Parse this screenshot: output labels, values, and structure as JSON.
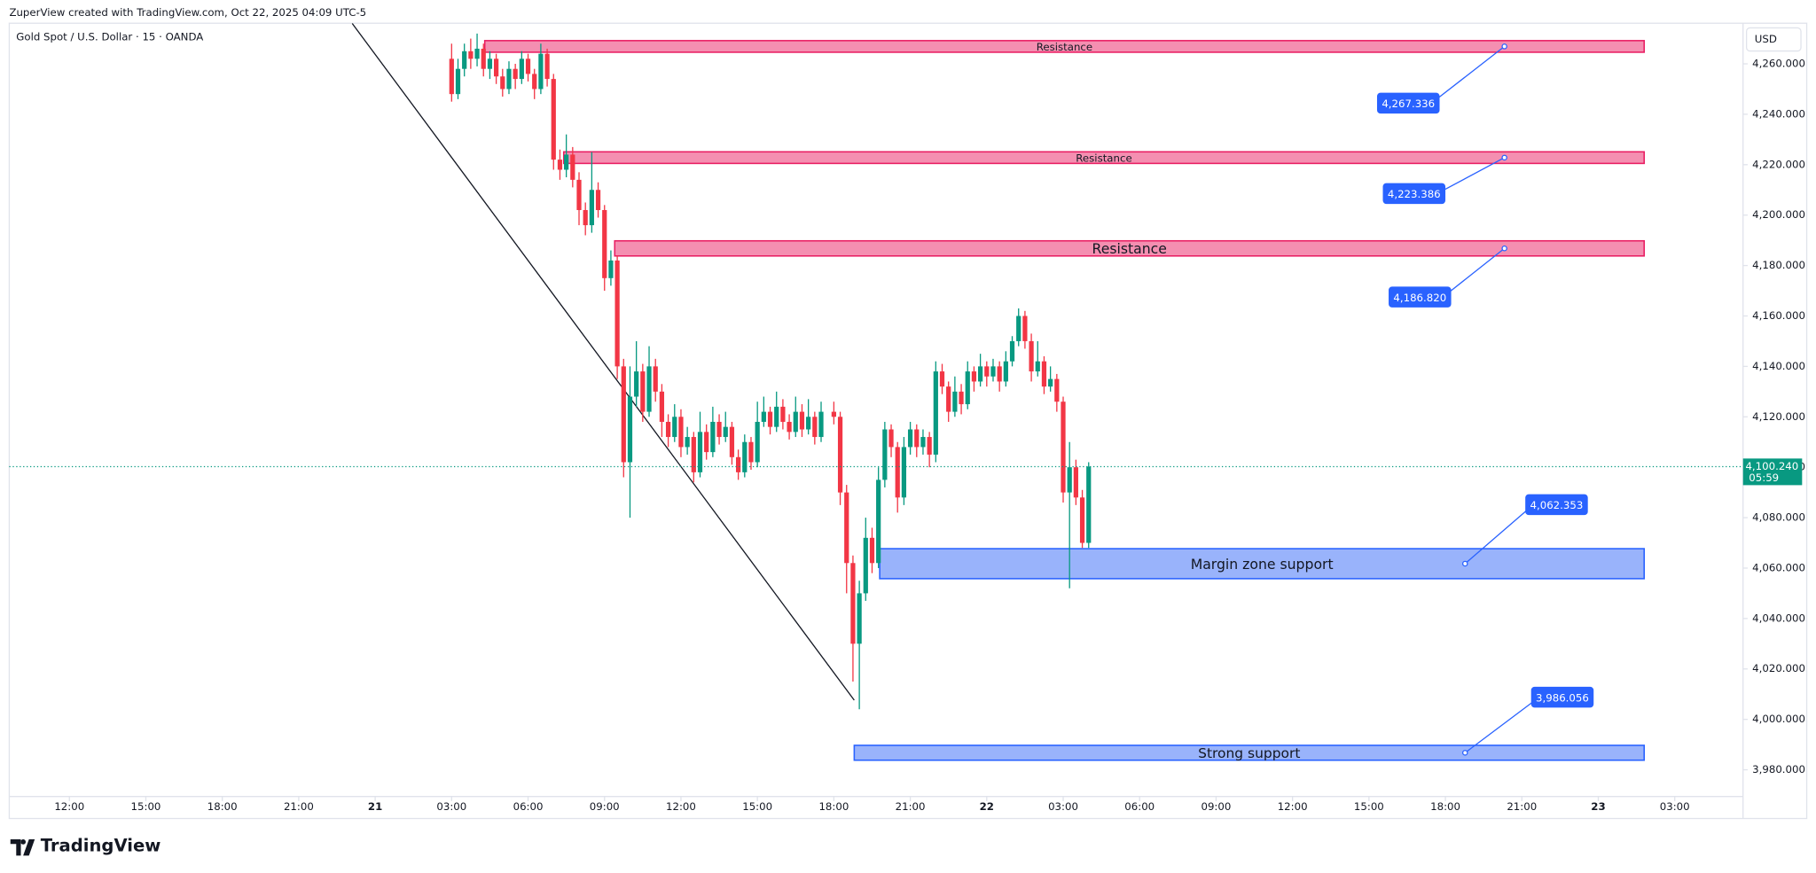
{
  "header": {
    "attribution": "ZuperView created with TradingView.com, Oct 22, 2025 04:09 UTC-5",
    "brand": "TradingView"
  },
  "chart_data": {
    "type": "candlestick",
    "title": "Gold Spot / U.S. Dollar · 15 · OANDA",
    "currency": "USD",
    "up_color": "#089981",
    "down_color": "#f23645",
    "xlim": [
      -14.36,
      53.68
    ],
    "ylim": [
      3969.4,
      4276.1
    ],
    "xticks": [
      {
        "value": -12,
        "label": "12:00"
      },
      {
        "value": -9,
        "label": "15:00"
      },
      {
        "value": -6,
        "label": "18:00"
      },
      {
        "value": -3,
        "label": "21:00"
      },
      {
        "value": 0,
        "label": "21"
      },
      {
        "value": 3,
        "label": "03:00"
      },
      {
        "value": 6,
        "label": "06:00"
      },
      {
        "value": 9,
        "label": "09:00"
      },
      {
        "value": 12,
        "label": "12:00"
      },
      {
        "value": 15,
        "label": "15:00"
      },
      {
        "value": 18,
        "label": "18:00"
      },
      {
        "value": 21,
        "label": "21:00"
      },
      {
        "value": 24,
        "label": "22"
      },
      {
        "value": 27,
        "label": "03:00"
      },
      {
        "value": 30,
        "label": "06:00"
      },
      {
        "value": 33,
        "label": "09:00"
      },
      {
        "value": 36,
        "label": "12:00"
      },
      {
        "value": 39,
        "label": "15:00"
      },
      {
        "value": 42,
        "label": "18:00"
      },
      {
        "value": 45,
        "label": "21:00"
      },
      {
        "value": 48,
        "label": "23"
      },
      {
        "value": 51,
        "label": "03:00"
      }
    ],
    "yticks": [
      {
        "value": 3980,
        "label": "3,980.000"
      },
      {
        "value": 4000,
        "label": "4,000.000"
      },
      {
        "value": 4020,
        "label": "4,020.000"
      },
      {
        "value": 4040,
        "label": "4,040.000"
      },
      {
        "value": 4060,
        "label": "4,060.000"
      },
      {
        "value": 4080,
        "label": "4,080.000"
      },
      {
        "value": 4100,
        "label": "4,100.000"
      },
      {
        "value": 4120,
        "label": "4,120.000"
      },
      {
        "value": 4140,
        "label": "4,140.000"
      },
      {
        "value": 4160,
        "label": "4,160.000"
      },
      {
        "value": 4180,
        "label": "4,180.000"
      },
      {
        "value": 4200,
        "label": "4,200.000"
      },
      {
        "value": 4220,
        "label": "4,220.000"
      },
      {
        "value": 4240,
        "label": "4,240.000"
      },
      {
        "value": 4260,
        "label": "4,260.000"
      }
    ],
    "candles": [
      {
        "x": 3,
        "o": 4262,
        "h": 4268,
        "l": 4245,
        "c": 4248
      },
      {
        "x": 3.25,
        "o": 4248,
        "h": 4262,
        "l": 4246,
        "c": 4258
      },
      {
        "x": 3.5,
        "o": 4258,
        "h": 4268,
        "l": 4255,
        "c": 4265
      },
      {
        "x": 3.75,
        "o": 4265,
        "h": 4270,
        "l": 4258,
        "c": 4262
      },
      {
        "x": 4,
        "o": 4262,
        "h": 4272,
        "l": 4259,
        "c": 4266
      },
      {
        "x": 4.25,
        "o": 4266,
        "h": 4268,
        "l": 4255,
        "c": 4258
      },
      {
        "x": 4.5,
        "o": 4258,
        "h": 4265,
        "l": 4254,
        "c": 4262
      },
      {
        "x": 4.75,
        "o": 4262,
        "h": 4264,
        "l": 4252,
        "c": 4255
      },
      {
        "x": 5,
        "o": 4255,
        "h": 4258,
        "l": 4247,
        "c": 4250
      },
      {
        "x": 5.25,
        "o": 4250,
        "h": 4261,
        "l": 4248,
        "c": 4258
      },
      {
        "x": 5.5,
        "o": 4258,
        "h": 4260,
        "l": 4250,
        "c": 4254
      },
      {
        "x": 5.75,
        "o": 4254,
        "h": 4265,
        "l": 4252,
        "c": 4262
      },
      {
        "x": 6,
        "o": 4262,
        "h": 4264,
        "l": 4253,
        "c": 4256
      },
      {
        "x": 6.25,
        "o": 4256,
        "h": 4258,
        "l": 4246,
        "c": 4250
      },
      {
        "x": 6.5,
        "o": 4250,
        "h": 4268,
        "l": 4248,
        "c": 4264
      },
      {
        "x": 6.75,
        "o": 4264,
        "h": 4266,
        "l": 4251,
        "c": 4254
      },
      {
        "x": 7,
        "o": 4254,
        "h": 4256,
        "l": 4218,
        "c": 4222
      },
      {
        "x": 7.25,
        "o": 4222,
        "h": 4226,
        "l": 4214,
        "c": 4218
      },
      {
        "x": 7.5,
        "o": 4218,
        "h": 4232,
        "l": 4215,
        "c": 4224
      },
      {
        "x": 7.75,
        "o": 4224,
        "h": 4227,
        "l": 4211,
        "c": 4214
      },
      {
        "x": 8,
        "o": 4214,
        "h": 4217,
        "l": 4196,
        "c": 4202
      },
      {
        "x": 8.25,
        "o": 4202,
        "h": 4205,
        "l": 4192,
        "c": 4196
      },
      {
        "x": 8.5,
        "o": 4196,
        "h": 4225,
        "l": 4193,
        "c": 4210
      },
      {
        "x": 8.75,
        "o": 4210,
        "h": 4213,
        "l": 4199,
        "c": 4202
      },
      {
        "x": 9,
        "o": 4202,
        "h": 4204,
        "l": 4170,
        "c": 4175
      },
      {
        "x": 9.25,
        "o": 4175,
        "h": 4186,
        "l": 4172,
        "c": 4182
      },
      {
        "x": 9.5,
        "o": 4182,
        "h": 4184,
        "l": 4135,
        "c": 4140
      },
      {
        "x": 9.75,
        "o": 4140,
        "h": 4143,
        "l": 4096,
        "c": 4102
      },
      {
        "x": 10,
        "o": 4102,
        "h": 4140,
        "l": 4080,
        "c": 4128
      },
      {
        "x": 10.25,
        "o": 4128,
        "h": 4150,
        "l": 4124,
        "c": 4138
      },
      {
        "x": 10.5,
        "o": 4138,
        "h": 4141,
        "l": 4118,
        "c": 4122
      },
      {
        "x": 10.75,
        "o": 4122,
        "h": 4148,
        "l": 4120,
        "c": 4140
      },
      {
        "x": 11,
        "o": 4140,
        "h": 4143,
        "l": 4126,
        "c": 4130
      },
      {
        "x": 11.25,
        "o": 4130,
        "h": 4133,
        "l": 4112,
        "c": 4118
      },
      {
        "x": 11.5,
        "o": 4118,
        "h": 4121,
        "l": 4108,
        "c": 4112
      },
      {
        "x": 11.75,
        "o": 4112,
        "h": 4125,
        "l": 4110,
        "c": 4120
      },
      {
        "x": 12,
        "o": 4120,
        "h": 4123,
        "l": 4104,
        "c": 4108
      },
      {
        "x": 12.25,
        "o": 4108,
        "h": 4116,
        "l": 4105,
        "c": 4112
      },
      {
        "x": 12.5,
        "o": 4112,
        "h": 4114,
        "l": 4094,
        "c": 4098
      },
      {
        "x": 12.75,
        "o": 4098,
        "h": 4122,
        "l": 4096,
        "c": 4114
      },
      {
        "x": 13,
        "o": 4114,
        "h": 4117,
        "l": 4103,
        "c": 4106
      },
      {
        "x": 13.25,
        "o": 4106,
        "h": 4124,
        "l": 4104,
        "c": 4118
      },
      {
        "x": 13.5,
        "o": 4118,
        "h": 4121,
        "l": 4109,
        "c": 4112
      },
      {
        "x": 13.75,
        "o": 4112,
        "h": 4122,
        "l": 4110,
        "c": 4116
      },
      {
        "x": 14,
        "o": 4116,
        "h": 4118,
        "l": 4101,
        "c": 4104
      },
      {
        "x": 14.25,
        "o": 4104,
        "h": 4107,
        "l": 4095,
        "c": 4098
      },
      {
        "x": 14.5,
        "o": 4098,
        "h": 4113,
        "l": 4096,
        "c": 4110
      },
      {
        "x": 14.75,
        "o": 4110,
        "h": 4112,
        "l": 4099,
        "c": 4102
      },
      {
        "x": 15,
        "o": 4102,
        "h": 4126,
        "l": 4100,
        "c": 4118
      },
      {
        "x": 15.25,
        "o": 4118,
        "h": 4128,
        "l": 4116,
        "c": 4122
      },
      {
        "x": 15.5,
        "o": 4122,
        "h": 4124,
        "l": 4113,
        "c": 4116
      },
      {
        "x": 15.75,
        "o": 4116,
        "h": 4130,
        "l": 4114,
        "c": 4124
      },
      {
        "x": 16,
        "o": 4124,
        "h": 4127,
        "l": 4115,
        "c": 4118
      },
      {
        "x": 16.25,
        "o": 4118,
        "h": 4121,
        "l": 4111,
        "c": 4114
      },
      {
        "x": 16.5,
        "o": 4114,
        "h": 4128,
        "l": 4112,
        "c": 4122
      },
      {
        "x": 16.75,
        "o": 4122,
        "h": 4125,
        "l": 4112,
        "c": 4115
      },
      {
        "x": 17,
        "o": 4115,
        "h": 4127,
        "l": 4113,
        "c": 4120
      },
      {
        "x": 17.25,
        "o": 4120,
        "h": 4122,
        "l": 4109,
        "c": 4112
      },
      {
        "x": 17.5,
        "o": 4112,
        "h": 4126,
        "l": 4110,
        "c": 4122
      },
      {
        "x": 18,
        "o": 4122,
        "h": 4126,
        "l": 4117,
        "c": 4120
      },
      {
        "x": 18.25,
        "o": 4120,
        "h": 4122,
        "l": 4085,
        "c": 4090
      },
      {
        "x": 18.5,
        "o": 4090,
        "h": 4093,
        "l": 4050,
        "c": 4062
      },
      {
        "x": 18.75,
        "o": 4062,
        "h": 4065,
        "l": 4015,
        "c": 4030
      },
      {
        "x": 19,
        "o": 4030,
        "h": 4055,
        "l": 4004,
        "c": 4050
      },
      {
        "x": 19.25,
        "o": 4050,
        "h": 4080,
        "l": 4047,
        "c": 4072
      },
      {
        "x": 19.5,
        "o": 4072,
        "h": 4076,
        "l": 4058,
        "c": 4062
      },
      {
        "x": 19.75,
        "o": 4062,
        "h": 4100,
        "l": 4060,
        "c": 4095
      },
      {
        "x": 20,
        "o": 4095,
        "h": 4118,
        "l": 4092,
        "c": 4115
      },
      {
        "x": 20.25,
        "o": 4115,
        "h": 4117,
        "l": 4104,
        "c": 4108
      },
      {
        "x": 20.5,
        "o": 4108,
        "h": 4110,
        "l": 4082,
        "c": 4088
      },
      {
        "x": 20.75,
        "o": 4088,
        "h": 4112,
        "l": 4085,
        "c": 4108
      },
      {
        "x": 21,
        "o": 4108,
        "h": 4118,
        "l": 4105,
        "c": 4115
      },
      {
        "x": 21.25,
        "o": 4115,
        "h": 4117,
        "l": 4104,
        "c": 4108
      },
      {
        "x": 21.5,
        "o": 4108,
        "h": 4115,
        "l": 4105,
        "c": 4112
      },
      {
        "x": 21.75,
        "o": 4112,
        "h": 4114,
        "l": 4100,
        "c": 4105
      },
      {
        "x": 22,
        "o": 4105,
        "h": 4142,
        "l": 4102,
        "c": 4138
      },
      {
        "x": 22.25,
        "o": 4138,
        "h": 4141,
        "l": 4129,
        "c": 4132
      },
      {
        "x": 22.5,
        "o": 4132,
        "h": 4134,
        "l": 4118,
        "c": 4122
      },
      {
        "x": 22.75,
        "o": 4122,
        "h": 4136,
        "l": 4120,
        "c": 4130
      },
      {
        "x": 23,
        "o": 4130,
        "h": 4133,
        "l": 4121,
        "c": 4125
      },
      {
        "x": 23.25,
        "o": 4125,
        "h": 4142,
        "l": 4123,
        "c": 4138
      },
      {
        "x": 23.5,
        "o": 4138,
        "h": 4140,
        "l": 4130,
        "c": 4134
      },
      {
        "x": 23.75,
        "o": 4134,
        "h": 4145,
        "l": 4132,
        "c": 4140
      },
      {
        "x": 24,
        "o": 4140,
        "h": 4142,
        "l": 4132,
        "c": 4136
      },
      {
        "x": 24.25,
        "o": 4136,
        "h": 4143,
        "l": 4134,
        "c": 4140
      },
      {
        "x": 24.5,
        "o": 4140,
        "h": 4142,
        "l": 4130,
        "c": 4134
      },
      {
        "x": 24.75,
        "o": 4134,
        "h": 4146,
        "l": 4132,
        "c": 4142
      },
      {
        "x": 25,
        "o": 4142,
        "h": 4152,
        "l": 4140,
        "c": 4150
      },
      {
        "x": 25.25,
        "o": 4150,
        "h": 4163,
        "l": 4148,
        "c": 4160
      },
      {
        "x": 25.5,
        "o": 4160,
        "h": 4162,
        "l": 4147,
        "c": 4150
      },
      {
        "x": 25.75,
        "o": 4150,
        "h": 4153,
        "l": 4134,
        "c": 4138
      },
      {
        "x": 26,
        "o": 4138,
        "h": 4150,
        "l": 4136,
        "c": 4142
      },
      {
        "x": 26.25,
        "o": 4142,
        "h": 4144,
        "l": 4129,
        "c": 4132
      },
      {
        "x": 26.5,
        "o": 4132,
        "h": 4140,
        "l": 4130,
        "c": 4135
      },
      {
        "x": 26.75,
        "o": 4135,
        "h": 4137,
        "l": 4122,
        "c": 4126
      },
      {
        "x": 27,
        "o": 4126,
        "h": 4128,
        "l": 4086,
        "c": 4090
      },
      {
        "x": 27.25,
        "o": 4090,
        "h": 4110,
        "l": 4052,
        "c": 4100
      },
      {
        "x": 27.5,
        "o": 4100,
        "h": 4103,
        "l": 4085,
        "c": 4088
      },
      {
        "x": 27.75,
        "o": 4088,
        "h": 4091,
        "l": 4068,
        "c": 4070
      },
      {
        "x": 28,
        "o": 4070,
        "h": 4102,
        "l": 4068,
        "c": 4100.24
      }
    ],
    "zones": [
      {
        "label": "Resistance",
        "kind": "resistance",
        "top": 4269.2,
        "bottom": 4264.6,
        "x0": 4.3,
        "x1": 49.8,
        "callout": "4,267.336"
      },
      {
        "label": "Resistance",
        "kind": "resistance",
        "top": 4225.1,
        "bottom": 4220.5,
        "x0": 7.4,
        "x1": 49.8,
        "callout": "4,223.386"
      },
      {
        "label": "Resistance",
        "kind": "resistance",
        "top": 4189.8,
        "bottom": 4183.8,
        "x0": 9.4,
        "x1": 49.8,
        "callout": "4,186.820"
      },
      {
        "label": "Margin zone support",
        "kind": "support",
        "top": 4067.7,
        "bottom": 4055.8,
        "x0": 19.8,
        "x1": 49.8,
        "callout": "4,062.353"
      },
      {
        "label": "Strong support",
        "kind": "support",
        "top": 3989.7,
        "bottom": 3983.8,
        "x0": 18.8,
        "x1": 49.8,
        "callout": "3,986.056"
      }
    ],
    "trendline": {
      "x": [
        -0.9,
        18.8
      ],
      "y": [
        4276,
        4007.6
      ]
    },
    "last_price": {
      "value": 4100.24,
      "label": "4,100.240",
      "countdown": "05:59",
      "color": "#089981"
    }
  }
}
